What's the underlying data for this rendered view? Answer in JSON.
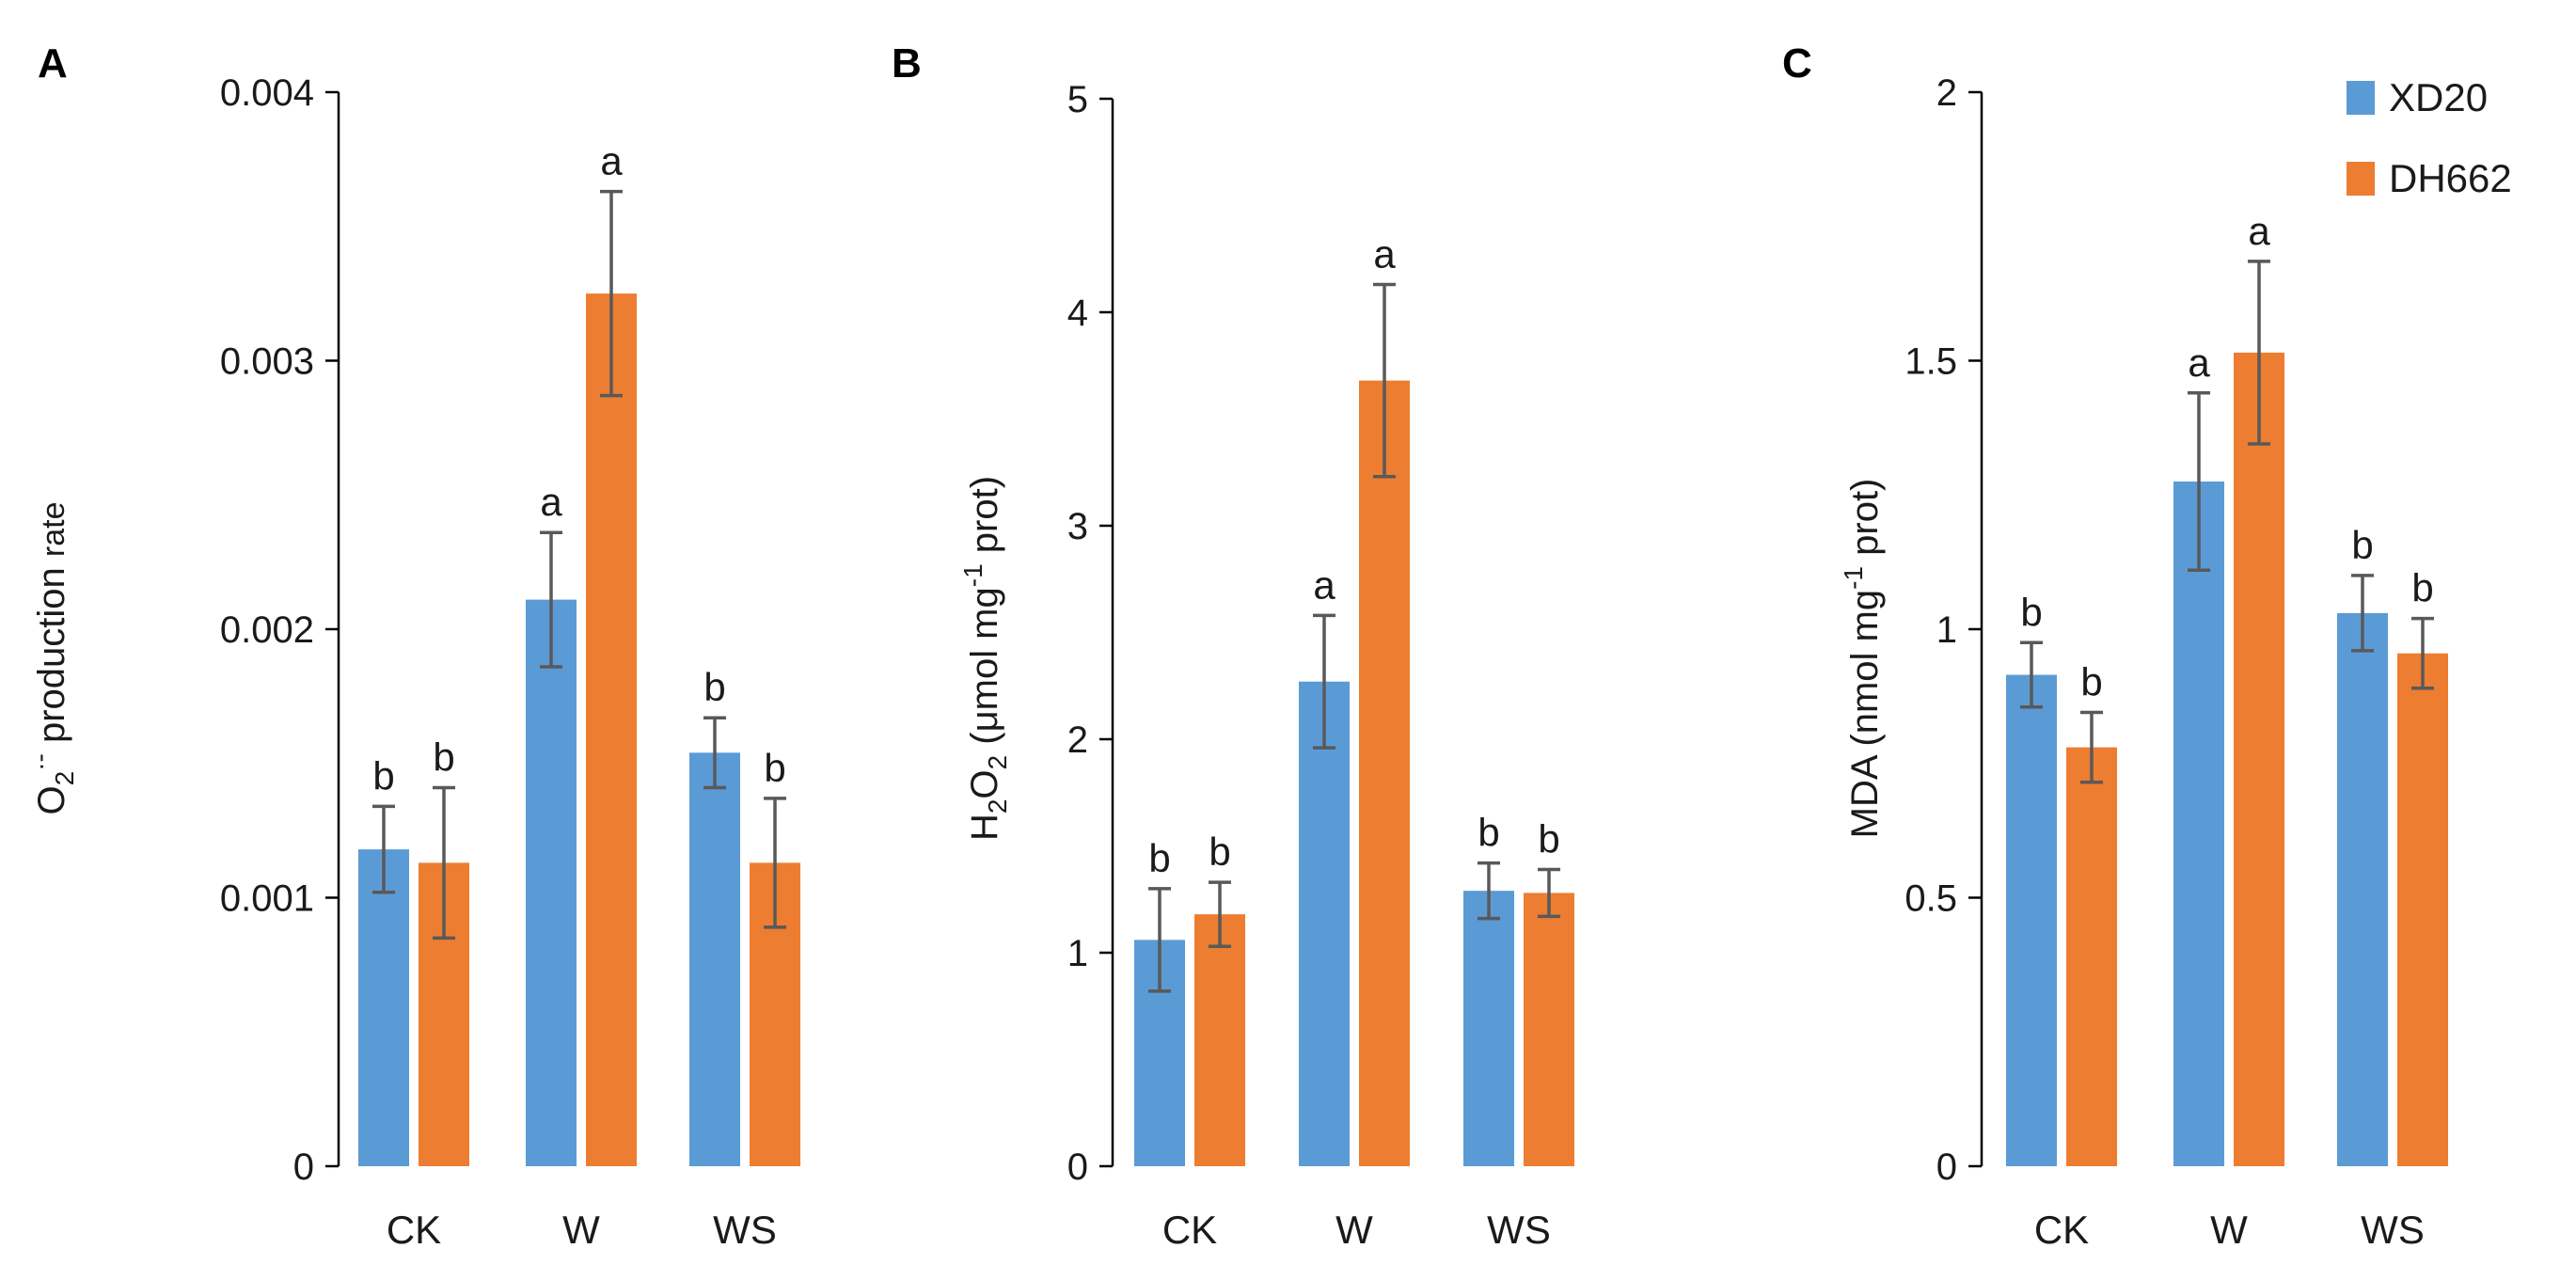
{
  "figure": {
    "legend": [
      {
        "name": "XD20",
        "color": "#5b9bd5"
      },
      {
        "name": "DH662",
        "color": "#ed7d31"
      }
    ]
  },
  "chart_data": [
    {
      "panel": "A",
      "type": "bar",
      "categories": [
        "CK",
        "W",
        "WS"
      ],
      "ylim": [
        0,
        0.004
      ],
      "yticks": [
        "0",
        "0.001",
        "0.002",
        "0.003",
        "0.004"
      ],
      "ylabel": {
        "O": "O",
        "sub": "2",
        "sup": "·-",
        "rest": " production ",
        "rate": "rate"
      },
      "series": [
        {
          "name": "XD20",
          "values": [
            0.00118,
            0.00211,
            0.00154
          ],
          "errors": [
            0.00016,
            0.00025,
            0.00013
          ],
          "sig": [
            "b",
            "a",
            "b"
          ]
        },
        {
          "name": "DH662",
          "values": [
            0.00113,
            0.00325,
            0.00113
          ],
          "errors": [
            0.00028,
            0.00038,
            0.00024
          ],
          "sig": [
            "b",
            "a",
            "b"
          ]
        }
      ]
    },
    {
      "panel": "B",
      "type": "bar",
      "categories": [
        "CK",
        "W",
        "WS"
      ],
      "ylim": [
        0,
        5
      ],
      "yticks": [
        "0",
        "1",
        "2",
        "3",
        "4",
        "5"
      ],
      "ylabel": {
        "H": "H",
        "s1": "2",
        "O": "O",
        "s2": "2",
        "mid": " (μmol mg",
        "sup": "-1",
        "end": " prot)"
      },
      "series": [
        {
          "name": "XD20",
          "values": [
            1.06,
            2.27,
            1.29
          ],
          "errors": [
            0.24,
            0.31,
            0.13
          ],
          "sig": [
            "b",
            "a",
            "b"
          ]
        },
        {
          "name": "DH662",
          "values": [
            1.18,
            3.68,
            1.28
          ],
          "errors": [
            0.15,
            0.45,
            0.11
          ],
          "sig": [
            "b",
            "a",
            "b"
          ]
        }
      ]
    },
    {
      "panel": "C",
      "type": "bar",
      "categories": [
        "CK",
        "W",
        "WS"
      ],
      "ylim": [
        0,
        2
      ],
      "yticks": [
        "0",
        "0.5",
        "1",
        "1.5",
        "2"
      ],
      "ylabel": {
        "start": "MDA (nmol mg",
        "sup": "-1",
        "end": " prot)"
      },
      "series": [
        {
          "name": "XD20",
          "values": [
            0.915,
            1.275,
            1.03
          ],
          "errors": [
            0.06,
            0.165,
            0.07
          ],
          "sig": [
            "b",
            "a",
            "b"
          ]
        },
        {
          "name": "DH662",
          "values": [
            0.78,
            1.515,
            0.955
          ],
          "errors": [
            0.065,
            0.17,
            0.065
          ],
          "sig": [
            "b",
            "a",
            "b"
          ]
        }
      ]
    }
  ]
}
